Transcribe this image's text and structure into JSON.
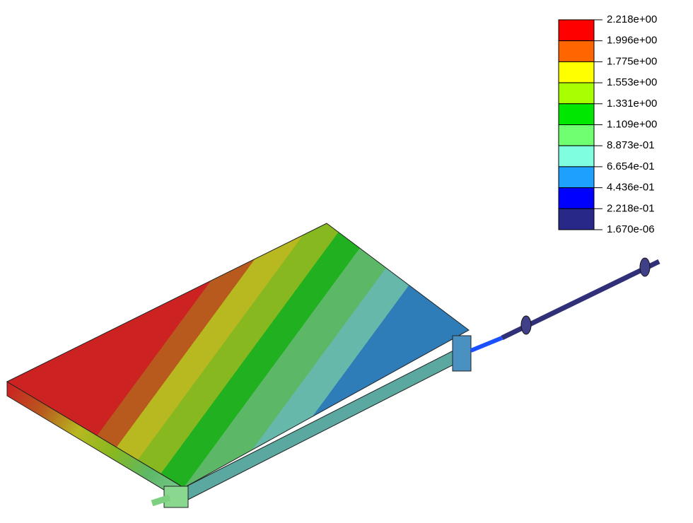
{
  "legend": {
    "labels": [
      "2.218e+00",
      "1.996e+00",
      "1.775e+00",
      "1.553e+00",
      "1.331e+00",
      "1.109e+00",
      "8.873e-01",
      "6.654e-01",
      "4.436e-01",
      "2.218e-01",
      "1.670e-06"
    ],
    "colors": [
      "#ff0000",
      "#ff6600",
      "#ffff00",
      "#a8ff00",
      "#00e800",
      "#70ff70",
      "#80ffe0",
      "#1ea0ff",
      "#0000ff",
      "#282888"
    ]
  }
}
